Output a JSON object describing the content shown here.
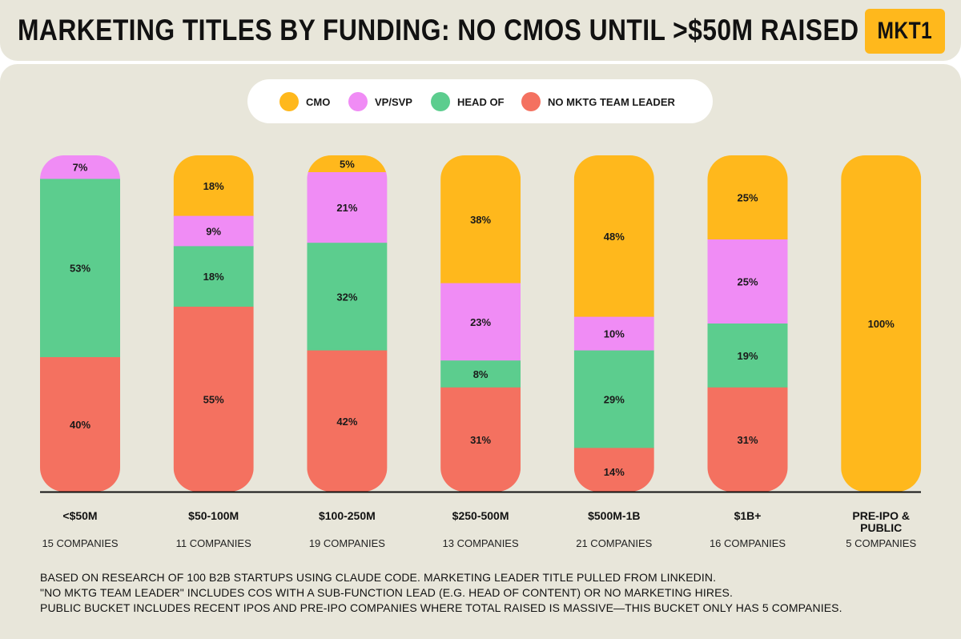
{
  "header": {
    "title": "MARKETING TITLES BY FUNDING: NO CMOS UNTIL >$50M RAISED",
    "logo": "MKT1"
  },
  "legend": [
    {
      "label": "CMO",
      "color": "#ffb81c"
    },
    {
      "label": "VP/SVP",
      "color": "#f08cf5"
    },
    {
      "label": "HEAD OF",
      "color": "#5ccd8e"
    },
    {
      "label": "NO MKTG TEAM LEADER",
      "color": "#f47160"
    }
  ],
  "chart_data": {
    "type": "bar",
    "stacked": true,
    "title": "MARKETING TITLES BY FUNDING: NO CMOS UNTIL >$50M RAISED",
    "categories": [
      "<$50M",
      "$50-100M",
      "$100-250M",
      "$250-500M",
      "$500M-1B",
      "$1B+",
      "PRE-IPO & PUBLIC"
    ],
    "counts": [
      "15 COMPANIES",
      "11 COMPANIES",
      "19 COMPANIES",
      "13 COMPANIES",
      "21 COMPANIES",
      "16 COMPANIES",
      "5 COMPANIES"
    ],
    "series": [
      {
        "name": "CMO",
        "color": "#ffb81c",
        "values": [
          0,
          18,
          5,
          38,
          48,
          25,
          100
        ]
      },
      {
        "name": "VP/SVP",
        "color": "#f08cf5",
        "values": [
          7,
          9,
          21,
          23,
          10,
          25,
          0
        ]
      },
      {
        "name": "HEAD OF",
        "color": "#5ccd8e",
        "values": [
          53,
          18,
          32,
          8,
          29,
          19,
          0
        ]
      },
      {
        "name": "NO MKTG TEAM LEADER",
        "color": "#f47160",
        "values": [
          40,
          55,
          42,
          31,
          14,
          31,
          0
        ]
      }
    ],
    "ylim": [
      0,
      100
    ],
    "unit": "%",
    "xlabel": "",
    "ylabel": ""
  },
  "footnotes": [
    "BASED ON RESEARCH OF 100 B2B STARTUPS USING CLAUDE CODE. MARKETING LEADER TITLE PULLED FROM LINKEDIN.",
    "\"NO MKTG TEAM LEADER\" INCLUDES COS WITH A SUB-FUNCTION LEAD (E.G. HEAD OF CONTENT) OR NO MARKETING HIRES.",
    "PUBLIC BUCKET INCLUDES RECENT IPOS AND PRE-IPO COMPANIES WHERE TOTAL RAISED IS MASSIVE—THIS BUCKET ONLY HAS 5 COMPANIES."
  ]
}
